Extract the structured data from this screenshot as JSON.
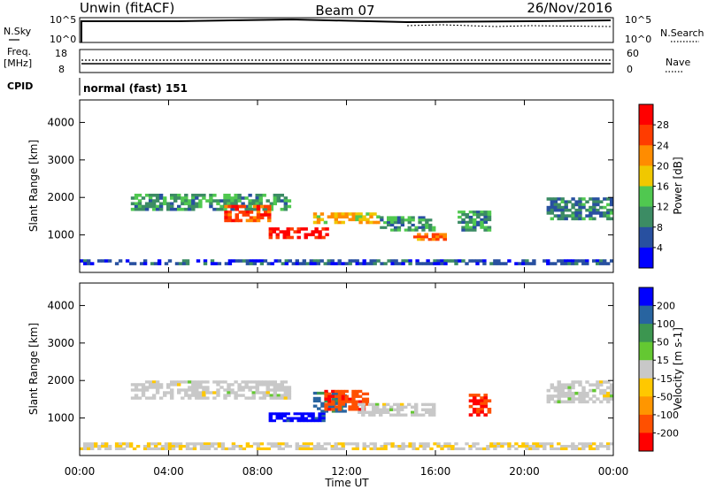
{
  "header": {
    "left_title": "Unwin (fitACF)",
    "center_title": "Beam 07",
    "right_title": "26/Nov/2016"
  },
  "info_panels": {
    "nsky": {
      "label": "N.Sky",
      "ticks": [
        "10^5",
        "10^0"
      ]
    },
    "nsearch": {
      "label": "N.Search",
      "ticks": [
        "10^5",
        "10^0"
      ]
    },
    "freq": {
      "label": "Freq.",
      "unit": "[MHz]",
      "ticks": [
        "18",
        "8"
      ]
    },
    "nave": {
      "label": "Nave",
      "ticks": [
        "60",
        "0"
      ]
    },
    "cpid": {
      "label": "CPID",
      "value": "normal (fast) 151"
    }
  },
  "colors": {
    "power": [
      "#0000ff",
      "#2850a0",
      "#3c8c64",
      "#50c850",
      "#f0c800",
      "#ff8c00",
      "#ff3c00",
      "#ff0000"
    ],
    "velocity": [
      "#0000ff",
      "#2864a0",
      "#3c9650",
      "#64c832",
      "#c8c8c8",
      "#ffc800",
      "#ff9600",
      "#ff5000",
      "#ff0000"
    ]
  },
  "chart_data": [
    {
      "type": "heatmap",
      "name": "power",
      "ylabel": "Slant Range [km]",
      "yticks": [
        1000,
        2000,
        3000,
        4000
      ],
      "colorbar": {
        "label": "Power [dB]",
        "ticks": [
          "4",
          "8",
          "12",
          "16",
          "20",
          "24",
          "28"
        ],
        "range": [
          0,
          30
        ]
      },
      "xticks": [
        "00:00",
        "04:00",
        "08:00",
        "12:00",
        "16:00",
        "20:00",
        "00:00"
      ],
      "regions": [
        {
          "t": [
            2.3,
            9.5
          ],
          "r": [
            1650,
            2100
          ],
          "value": 10
        },
        {
          "t": [
            6.5,
            8.6
          ],
          "r": [
            1350,
            1800
          ],
          "value": 24
        },
        {
          "t": [
            8.5,
            11.2
          ],
          "r": [
            900,
            1200
          ],
          "value": 27
        },
        {
          "t": [
            10.5,
            13.5
          ],
          "r": [
            1300,
            1600
          ],
          "value": 18
        },
        {
          "t": [
            13.5,
            16.0
          ],
          "r": [
            1100,
            1500
          ],
          "value": 10
        },
        {
          "t": [
            15.0,
            16.5
          ],
          "r": [
            850,
            1050
          ],
          "value": 22
        },
        {
          "t": [
            17.0,
            18.5
          ],
          "r": [
            1100,
            1650
          ],
          "value": 10
        },
        {
          "t": [
            21.0,
            24.0
          ],
          "r": [
            1400,
            2000
          ],
          "value": 8
        },
        {
          "t": [
            0.0,
            24.0
          ],
          "r": [
            200,
            350
          ],
          "value": 5
        }
      ]
    },
    {
      "type": "heatmap",
      "name": "velocity",
      "ylabel": "Slant Range [km]",
      "yticks": [
        1000,
        2000,
        3000,
        4000
      ],
      "colorbar": {
        "label": "Velocity [m s-1]",
        "ticks": [
          "200",
          "100",
          "50",
          "15",
          "-15",
          "-50",
          "-100",
          "-200"
        ],
        "range": [
          -250,
          250
        ]
      },
      "xticks": [
        "00:00",
        "04:00",
        "08:00",
        "12:00",
        "16:00",
        "20:00",
        "00:00"
      ],
      "xlabel": "Time UT",
      "regions": [
        {
          "t": [
            2.3,
            9.5
          ],
          "r": [
            1500,
            2000
          ],
          "value": 0
        },
        {
          "t": [
            8.5,
            11.2
          ],
          "r": [
            900,
            1150
          ],
          "value": -220
        },
        {
          "t": [
            10.5,
            12.0
          ],
          "r": [
            1150,
            1700
          ],
          "value": -150
        },
        {
          "t": [
            11.0,
            13.0
          ],
          "r": [
            1200,
            1750
          ],
          "value": 180
        },
        {
          "t": [
            12.5,
            16.0
          ],
          "r": [
            1050,
            1400
          ],
          "value": 0
        },
        {
          "t": [
            17.5,
            18.5
          ],
          "r": [
            1050,
            1650
          ],
          "value": 200
        },
        {
          "t": [
            21.0,
            24.0
          ],
          "r": [
            1400,
            2000
          ],
          "value": 0
        },
        {
          "t": [
            0.0,
            24.0
          ],
          "r": [
            150,
            350
          ],
          "value": 20
        }
      ]
    }
  ]
}
